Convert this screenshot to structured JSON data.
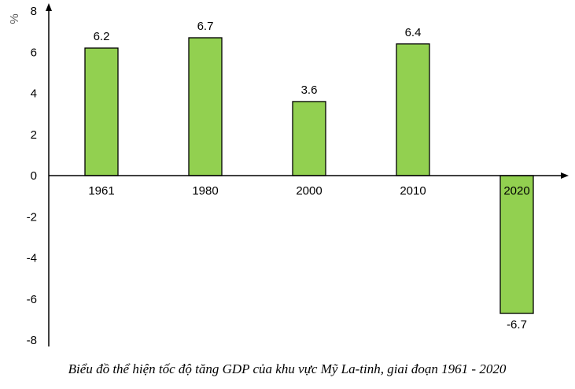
{
  "chart_data": {
    "type": "bar",
    "title": "Biểu đồ thể hiện tốc độ tăng GDP của khu vực Mỹ La-tinh, giai đoạn 1961 - 2020",
    "xlabel": "",
    "ylabel": "%",
    "categories": [
      "1961",
      "1980",
      "2000",
      "2010",
      "2020"
    ],
    "values": [
      6.2,
      6.7,
      3.6,
      6.4,
      -6.7
    ],
    "data_labels": [
      "6.2",
      "6.7",
      "3.6",
      "6.4",
      "-6.7"
    ],
    "ylim": [
      -8,
      8
    ],
    "yticks": [
      8,
      6,
      4,
      2,
      0,
      -2,
      -4,
      -6,
      -8
    ],
    "grid": false,
    "bar_color": "#92d050",
    "bar_border_color": "#000000"
  }
}
